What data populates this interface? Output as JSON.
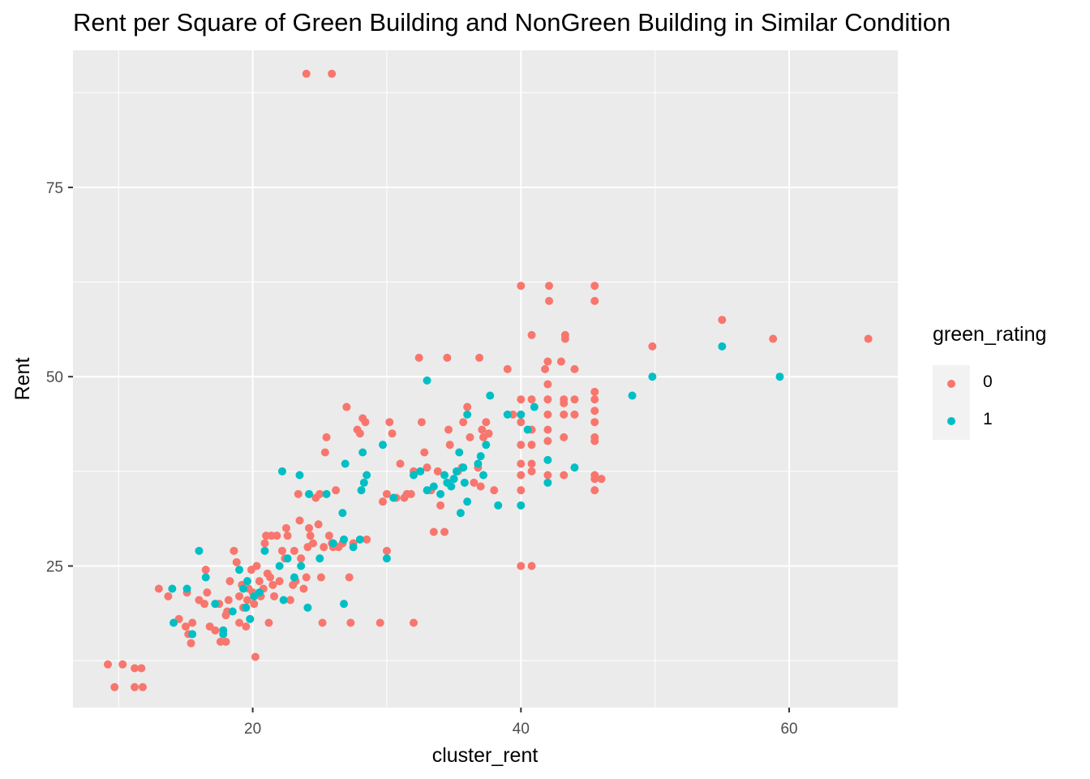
{
  "chart_data": {
    "type": "scatter",
    "title": "Rent per Square of Green Building and NonGreen Building in Similar Condition",
    "xlabel": "cluster_rent",
    "ylabel": "Rent",
    "xlim": [
      6.6,
      68.1
    ],
    "ylim": [
      6.3,
      93.1
    ],
    "x_ticks": [
      20,
      40,
      60
    ],
    "y_ticks": [
      25,
      50,
      75
    ],
    "grid": true,
    "legend": {
      "title": "green_rating",
      "position": "right",
      "entries": [
        {
          "label": "0",
          "color": "#F8766D"
        },
        {
          "label": "1",
          "color": "#00BFC4"
        }
      ]
    },
    "series": [
      {
        "name": "0",
        "color": "#F8766D",
        "points": [
          [
            24.0,
            90.0
          ],
          [
            25.9,
            90.0
          ],
          [
            9.2,
            12.0
          ],
          [
            10.3,
            12.0
          ],
          [
            9.7,
            9.0
          ],
          [
            11.2,
            11.5
          ],
          [
            11.7,
            11.5
          ],
          [
            11.2,
            9.0
          ],
          [
            11.8,
            9.0
          ],
          [
            13.0,
            22.0
          ],
          [
            13.7,
            21.0
          ],
          [
            14.5,
            18.0
          ],
          [
            15.0,
            17.0
          ],
          [
            15.5,
            17.5
          ],
          [
            15.2,
            16.0
          ],
          [
            15.4,
            14.8
          ],
          [
            15.1,
            21.5
          ],
          [
            16.0,
            20.5
          ],
          [
            16.4,
            20.0
          ],
          [
            16.5,
            24.5
          ],
          [
            16.6,
            21.5
          ],
          [
            16.8,
            17.0
          ],
          [
            17.2,
            16.5
          ],
          [
            17.5,
            20.0
          ],
          [
            17.6,
            15.0
          ],
          [
            18.0,
            15.0
          ],
          [
            18.0,
            18.5
          ],
          [
            18.1,
            19.0
          ],
          [
            18.2,
            20.5
          ],
          [
            18.3,
            23.0
          ],
          [
            18.6,
            27.0
          ],
          [
            18.8,
            25.5
          ],
          [
            19.0,
            17.5
          ],
          [
            19.0,
            21.0
          ],
          [
            19.2,
            22.5
          ],
          [
            19.3,
            19.5
          ],
          [
            19.5,
            17.0
          ],
          [
            19.6,
            20.5
          ],
          [
            19.7,
            22.0
          ],
          [
            19.9,
            24.5
          ],
          [
            20.0,
            21.5
          ],
          [
            20.1,
            20.0
          ],
          [
            20.2,
            13.0
          ],
          [
            20.3,
            25.0
          ],
          [
            20.5,
            23.0
          ],
          [
            20.6,
            21.0
          ],
          [
            20.8,
            22.0
          ],
          [
            20.9,
            28.0
          ],
          [
            21.0,
            29.0
          ],
          [
            21.1,
            24.0
          ],
          [
            21.2,
            17.5
          ],
          [
            21.3,
            23.5
          ],
          [
            21.4,
            29.0
          ],
          [
            21.5,
            22.5
          ],
          [
            21.6,
            21.0
          ],
          [
            21.8,
            29.0
          ],
          [
            22.0,
            23.0
          ],
          [
            22.2,
            27.0
          ],
          [
            22.4,
            26.0
          ],
          [
            22.5,
            30.0
          ],
          [
            22.6,
            29.0
          ],
          [
            22.8,
            20.5
          ],
          [
            23.0,
            22.5
          ],
          [
            23.1,
            27.0
          ],
          [
            23.2,
            23.0
          ],
          [
            23.4,
            34.5
          ],
          [
            23.5,
            31.0
          ],
          [
            23.6,
            26.0
          ],
          [
            23.8,
            22.0
          ],
          [
            24.0,
            23.5
          ],
          [
            24.1,
            27.5
          ],
          [
            24.2,
            30.0
          ],
          [
            24.3,
            29.0
          ],
          [
            24.5,
            28.0
          ],
          [
            24.7,
            34.0
          ],
          [
            24.9,
            30.5
          ],
          [
            25.0,
            34.5
          ],
          [
            25.1,
            23.5
          ],
          [
            25.2,
            17.5
          ],
          [
            25.3,
            27.5
          ],
          [
            25.4,
            40.0
          ],
          [
            25.5,
            42.0
          ],
          [
            25.7,
            29.0
          ],
          [
            25.9,
            28.0
          ],
          [
            26.0,
            27.5
          ],
          [
            26.2,
            35.0
          ],
          [
            26.4,
            27.5
          ],
          [
            26.7,
            28.0
          ],
          [
            27.0,
            46.0
          ],
          [
            27.2,
            23.5
          ],
          [
            27.3,
            17.5
          ],
          [
            27.5,
            28.0
          ],
          [
            27.8,
            43.0
          ],
          [
            28.0,
            42.5
          ],
          [
            28.2,
            44.5
          ],
          [
            28.4,
            44.0
          ],
          [
            28.5,
            28.5
          ],
          [
            29.5,
            17.5
          ],
          [
            29.7,
            33.5
          ],
          [
            30.0,
            34.5
          ],
          [
            30.0,
            27.0
          ],
          [
            30.2,
            44.0
          ],
          [
            30.4,
            42.5
          ],
          [
            30.7,
            34.0
          ],
          [
            31.0,
            38.5
          ],
          [
            31.3,
            34.0
          ],
          [
            31.5,
            34.5
          ],
          [
            31.8,
            34.5
          ],
          [
            32.0,
            17.5
          ],
          [
            32.0,
            37.5
          ],
          [
            32.4,
            52.5
          ],
          [
            32.6,
            44.0
          ],
          [
            32.8,
            40.0
          ],
          [
            33.0,
            38.0
          ],
          [
            33.3,
            35.0
          ],
          [
            33.5,
            29.5
          ],
          [
            33.8,
            37.5
          ],
          [
            34.0,
            33.0
          ],
          [
            34.3,
            29.5
          ],
          [
            34.5,
            52.5
          ],
          [
            34.6,
            43.0
          ],
          [
            34.7,
            41.0
          ],
          [
            35.0,
            36.5
          ],
          [
            35.3,
            37.5
          ],
          [
            35.6,
            38.0
          ],
          [
            35.7,
            44.0
          ],
          [
            36.0,
            46.0
          ],
          [
            36.2,
            42.0
          ],
          [
            36.5,
            36.0
          ],
          [
            36.8,
            38.0
          ],
          [
            36.9,
            52.5
          ],
          [
            37.0,
            35.5
          ],
          [
            37.1,
            43.0
          ],
          [
            37.2,
            42.0
          ],
          [
            37.4,
            44.0
          ],
          [
            37.6,
            42.5
          ],
          [
            38.0,
            35.0
          ],
          [
            39.0,
            51.0
          ],
          [
            39.4,
            45.0
          ],
          [
            40.0,
            62.0
          ],
          [
            40.0,
            47.0
          ],
          [
            40.0,
            44.0
          ],
          [
            40.0,
            41.0
          ],
          [
            40.0,
            38.5
          ],
          [
            40.0,
            37.0
          ],
          [
            40.0,
            35.0
          ],
          [
            40.0,
            25.0
          ],
          [
            40.8,
            55.5
          ],
          [
            40.8,
            47.0
          ],
          [
            40.8,
            43.0
          ],
          [
            40.8,
            41.0
          ],
          [
            40.8,
            38.5
          ],
          [
            40.8,
            37.5
          ],
          [
            40.8,
            25.0
          ],
          [
            41.8,
            51.0
          ],
          [
            42.0,
            52.0
          ],
          [
            42.0,
            49.0
          ],
          [
            42.0,
            47.0
          ],
          [
            42.0,
            45.0
          ],
          [
            42.0,
            43.0
          ],
          [
            42.0,
            41.5
          ],
          [
            42.0,
            37.0
          ],
          [
            42.1,
            62.0
          ],
          [
            42.1,
            60.0
          ],
          [
            43.0,
            52.0
          ],
          [
            43.2,
            46.5
          ],
          [
            43.2,
            47.0
          ],
          [
            43.2,
            45.0
          ],
          [
            43.2,
            42.0
          ],
          [
            43.2,
            37.0
          ],
          [
            43.3,
            55.5
          ],
          [
            43.3,
            55.0
          ],
          [
            44.0,
            51.0
          ],
          [
            44.0,
            47.0
          ],
          [
            44.0,
            45.0
          ],
          [
            45.5,
            62.0
          ],
          [
            45.5,
            60.0
          ],
          [
            45.5,
            48.0
          ],
          [
            45.5,
            47.0
          ],
          [
            45.5,
            45.5
          ],
          [
            45.5,
            44.0
          ],
          [
            45.5,
            42.0
          ],
          [
            45.5,
            41.5
          ],
          [
            45.5,
            37.0
          ],
          [
            45.5,
            36.5
          ],
          [
            45.5,
            35.0
          ],
          [
            46.0,
            36.5
          ],
          [
            49.8,
            54.0
          ],
          [
            55.0,
            57.5
          ],
          [
            58.8,
            55.0
          ],
          [
            65.9,
            55.0
          ]
        ]
      },
      {
        "name": "1",
        "color": "#00BFC4",
        "points": [
          [
            14.0,
            22.0
          ],
          [
            14.1,
            17.5
          ],
          [
            15.1,
            22.0
          ],
          [
            15.5,
            16.0
          ],
          [
            16.0,
            27.0
          ],
          [
            16.5,
            23.5
          ],
          [
            17.2,
            20.0
          ],
          [
            17.8,
            16.0
          ],
          [
            17.8,
            16.5
          ],
          [
            18.5,
            19.0
          ],
          [
            19.0,
            24.5
          ],
          [
            19.3,
            22.0
          ],
          [
            19.5,
            19.5
          ],
          [
            19.6,
            23.0
          ],
          [
            19.8,
            18.0
          ],
          [
            20.1,
            21.0
          ],
          [
            20.5,
            21.5
          ],
          [
            20.9,
            27.0
          ],
          [
            22.0,
            25.0
          ],
          [
            22.2,
            37.5
          ],
          [
            22.3,
            20.5
          ],
          [
            22.6,
            26.0
          ],
          [
            23.1,
            23.5
          ],
          [
            23.5,
            37.0
          ],
          [
            23.6,
            25.0
          ],
          [
            24.1,
            19.5
          ],
          [
            24.2,
            34.5
          ],
          [
            25.0,
            26.0
          ],
          [
            25.5,
            34.5
          ],
          [
            26.0,
            28.0
          ],
          [
            26.7,
            32.0
          ],
          [
            26.8,
            28.5
          ],
          [
            26.8,
            20.0
          ],
          [
            26.9,
            38.5
          ],
          [
            27.5,
            27.5
          ],
          [
            28.0,
            28.5
          ],
          [
            28.1,
            35.0
          ],
          [
            28.2,
            40.0
          ],
          [
            28.3,
            36.0
          ],
          [
            28.5,
            37.0
          ],
          [
            29.7,
            41.0
          ],
          [
            30.0,
            26.0
          ],
          [
            30.5,
            34.0
          ],
          [
            32.0,
            37.0
          ],
          [
            32.5,
            37.5
          ],
          [
            33.0,
            49.5
          ],
          [
            33.0,
            35.0
          ],
          [
            33.5,
            35.5
          ],
          [
            34.0,
            34.5
          ],
          [
            34.3,
            37.0
          ],
          [
            34.5,
            36.0
          ],
          [
            34.8,
            35.5
          ],
          [
            35.0,
            36.5
          ],
          [
            35.2,
            37.5
          ],
          [
            35.4,
            40.0
          ],
          [
            35.5,
            32.0
          ],
          [
            35.7,
            38.0
          ],
          [
            35.8,
            36.0
          ],
          [
            36.0,
            45.0
          ],
          [
            36.0,
            33.5
          ],
          [
            36.8,
            38.5
          ],
          [
            37.0,
            39.5
          ],
          [
            37.2,
            37.0
          ],
          [
            37.4,
            41.0
          ],
          [
            37.7,
            47.5
          ],
          [
            38.3,
            33.0
          ],
          [
            39.0,
            45.0
          ],
          [
            40.0,
            45.0
          ],
          [
            40.0,
            33.0
          ],
          [
            40.5,
            43.0
          ],
          [
            41.0,
            46.0
          ],
          [
            42.0,
            39.0
          ],
          [
            42.0,
            36.0
          ],
          [
            44.0,
            38.0
          ],
          [
            48.3,
            47.5
          ],
          [
            49.8,
            50.0
          ],
          [
            55.0,
            54.0
          ],
          [
            59.3,
            50.0
          ]
        ]
      }
    ]
  }
}
